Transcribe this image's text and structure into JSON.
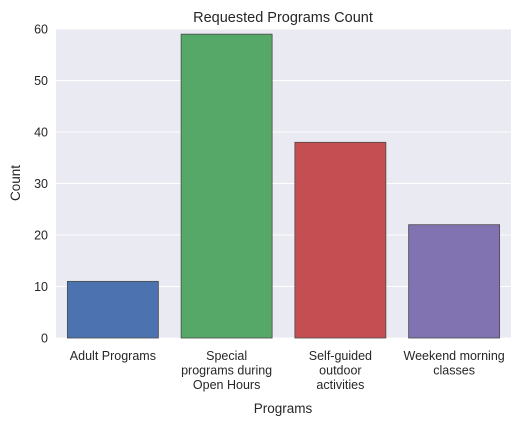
{
  "chart_data": {
    "type": "bar",
    "title": "Requested Programs Count",
    "xlabel": "Programs",
    "ylabel": "Count",
    "ylim": [
      0,
      60
    ],
    "yticks": [
      0,
      10,
      20,
      30,
      40,
      50,
      60
    ],
    "grid": true,
    "categories": [
      [
        "Adult Programs"
      ],
      [
        "Special",
        "programs during",
        "Open Hours"
      ],
      [
        "Self-guided",
        "outdoor",
        "activities"
      ],
      [
        "Weekend morning",
        "classes"
      ]
    ],
    "values": [
      11,
      59,
      38,
      22
    ],
    "colors": [
      "#4c72b0",
      "#55a868",
      "#c44e52",
      "#8172b2"
    ],
    "plot_background": "#eaeaf2"
  }
}
